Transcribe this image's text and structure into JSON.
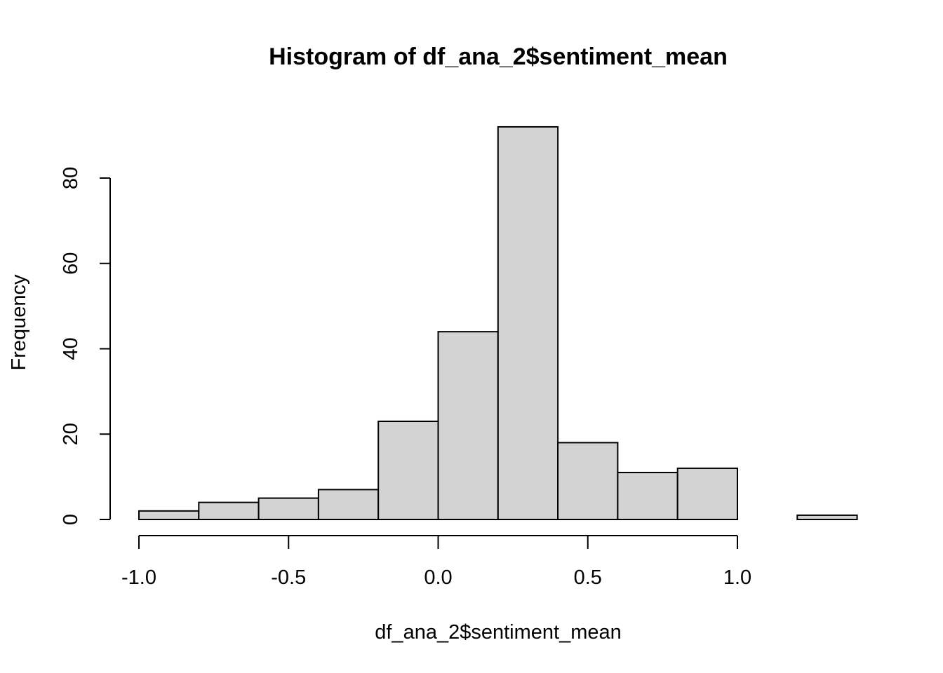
{
  "chart_data": {
    "type": "bar",
    "title": "Histogram of df_ana_2$sentiment_mean",
    "xlabel": "df_ana_2$sentiment_mean",
    "ylabel": "Frequency",
    "xlim": [
      -1.0,
      1.4
    ],
    "ylim": [
      0,
      92
    ],
    "x_ticks": [
      -1.0,
      -0.5,
      0.0,
      0.5,
      1.0
    ],
    "x_tick_labels": [
      "-1.0",
      "-0.5",
      "0.0",
      "0.5",
      "1.0"
    ],
    "y_ticks": [
      0,
      20,
      40,
      60,
      80
    ],
    "y_tick_labels": [
      "0",
      "20",
      "40",
      "60",
      "80"
    ],
    "bins": [
      {
        "start": -1.0,
        "end": -0.8,
        "count": 2
      },
      {
        "start": -0.8,
        "end": -0.6,
        "count": 4
      },
      {
        "start": -0.6,
        "end": -0.4,
        "count": 5
      },
      {
        "start": -0.4,
        "end": -0.2,
        "count": 7
      },
      {
        "start": -0.2,
        "end": 0.0,
        "count": 23
      },
      {
        "start": 0.0,
        "end": 0.2,
        "count": 44
      },
      {
        "start": 0.2,
        "end": 0.4,
        "count": 92
      },
      {
        "start": 0.4,
        "end": 0.6,
        "count": 18
      },
      {
        "start": 0.6,
        "end": 0.8,
        "count": 11
      },
      {
        "start": 0.8,
        "end": 1.0,
        "count": 12
      },
      {
        "start": 1.0,
        "end": 1.2,
        "count": 0
      },
      {
        "start": 1.2,
        "end": 1.4,
        "count": 1
      }
    ],
    "grid": false,
    "bar_color": "#d3d3d3",
    "edge_color": "#000000"
  }
}
